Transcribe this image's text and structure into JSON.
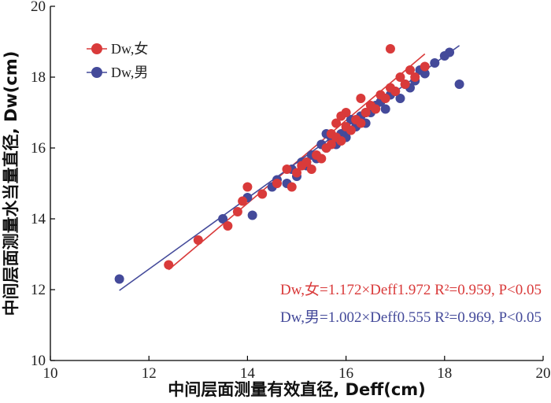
{
  "chart_data": {
    "type": "scatter",
    "xlabel": "中间层面测量有效直径, Deff(cm)",
    "ylabel": "中间层面测量水当量直径, Dw(cm)",
    "xlim": [
      10,
      20
    ],
    "ylim": [
      10,
      20
    ],
    "x_ticks": [
      10,
      12,
      14,
      16,
      18,
      20
    ],
    "y_ticks": [
      10,
      12,
      14,
      16,
      18,
      20
    ],
    "grid": false,
    "legend_position": "top-left",
    "series": [
      {
        "name": "Dw,女",
        "color": "#d93a3a",
        "fit": {
          "slope": 1.172,
          "intercept": -1.972,
          "x_range": [
            12.4,
            17.6
          ]
        },
        "equation": "Dw,女=1.172×Deff1.972   R²=0.959, P<0.05",
        "points": [
          [
            12.4,
            12.7
          ],
          [
            13.0,
            13.4
          ],
          [
            13.6,
            13.8
          ],
          [
            13.8,
            14.2
          ],
          [
            13.9,
            14.5
          ],
          [
            14.0,
            14.9
          ],
          [
            14.3,
            14.7
          ],
          [
            14.6,
            15.0
          ],
          [
            14.8,
            15.4
          ],
          [
            14.9,
            14.9
          ],
          [
            15.0,
            15.3
          ],
          [
            15.1,
            15.5
          ],
          [
            15.2,
            15.6
          ],
          [
            15.3,
            15.4
          ],
          [
            15.4,
            15.8
          ],
          [
            15.5,
            15.7
          ],
          [
            15.6,
            16.0
          ],
          [
            15.7,
            16.1
          ],
          [
            15.7,
            16.4
          ],
          [
            15.8,
            16.3
          ],
          [
            15.8,
            16.7
          ],
          [
            15.9,
            16.2
          ],
          [
            16.0,
            16.6
          ],
          [
            16.1,
            16.5
          ],
          [
            16.2,
            16.8
          ],
          [
            16.3,
            16.7
          ],
          [
            16.4,
            17.0
          ],
          [
            16.5,
            17.2
          ],
          [
            16.6,
            17.1
          ],
          [
            16.7,
            17.5
          ],
          [
            16.8,
            17.4
          ],
          [
            16.9,
            17.7
          ],
          [
            16.9,
            18.8
          ],
          [
            17.0,
            17.6
          ],
          [
            17.1,
            18.0
          ],
          [
            17.2,
            17.8
          ],
          [
            17.3,
            18.2
          ],
          [
            17.4,
            18.0
          ],
          [
            17.6,
            18.3
          ],
          [
            16.3,
            17.4
          ],
          [
            16.0,
            17.0
          ],
          [
            15.9,
            16.9
          ]
        ]
      },
      {
        "name": "Dw,男",
        "color": "#444a9a",
        "fit": {
          "slope": 1.002,
          "intercept": 0.555,
          "x_range": [
            11.4,
            18.3
          ]
        },
        "equation": "Dw,男=1.002×Deff0.555   R²=0.969, P<0.05",
        "points": [
          [
            11.4,
            12.3
          ],
          [
            13.5,
            14.0
          ],
          [
            14.0,
            14.6
          ],
          [
            14.1,
            14.1
          ],
          [
            14.5,
            14.9
          ],
          [
            14.6,
            15.1
          ],
          [
            14.8,
            15.0
          ],
          [
            14.9,
            15.4
          ],
          [
            15.0,
            15.2
          ],
          [
            15.1,
            15.6
          ],
          [
            15.2,
            15.5
          ],
          [
            15.3,
            15.8
          ],
          [
            15.4,
            15.7
          ],
          [
            15.5,
            16.1
          ],
          [
            15.6,
            16.0
          ],
          [
            15.7,
            16.3
          ],
          [
            15.8,
            16.1
          ],
          [
            15.9,
            16.4
          ],
          [
            16.0,
            16.5
          ],
          [
            16.1,
            16.8
          ],
          [
            16.2,
            16.6
          ],
          [
            16.3,
            16.9
          ],
          [
            16.4,
            16.7
          ],
          [
            16.5,
            17.0
          ],
          [
            16.6,
            17.2
          ],
          [
            16.7,
            17.3
          ],
          [
            16.8,
            17.1
          ],
          [
            16.9,
            17.5
          ],
          [
            17.0,
            17.6
          ],
          [
            17.1,
            17.4
          ],
          [
            17.2,
            17.8
          ],
          [
            17.3,
            17.7
          ],
          [
            17.4,
            17.9
          ],
          [
            17.5,
            18.2
          ],
          [
            17.6,
            18.1
          ],
          [
            17.8,
            18.4
          ],
          [
            18.0,
            18.6
          ],
          [
            18.1,
            18.7
          ],
          [
            18.3,
            17.8
          ],
          [
            15.6,
            16.4
          ],
          [
            16.0,
            16.3
          ],
          [
            16.4,
            17.0
          ]
        ]
      }
    ]
  }
}
